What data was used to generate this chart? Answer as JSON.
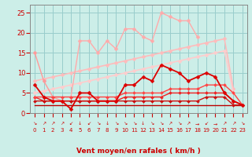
{
  "x": [
    0,
    1,
    2,
    3,
    4,
    5,
    6,
    7,
    8,
    9,
    10,
    11,
    12,
    13,
    14,
    15,
    16,
    17,
    18,
    19,
    20,
    21,
    22,
    23
  ],
  "series": [
    {
      "name": "rafales_high",
      "y": [
        null,
        null,
        null,
        null,
        4,
        18,
        18,
        15,
        18,
        16,
        21,
        21,
        19,
        18,
        25,
        24,
        23,
        23,
        19,
        null,
        null,
        null,
        null,
        null
      ],
      "color": "#ffaaaa",
      "lw": 1.0,
      "marker": "D",
      "ms": 2.5,
      "zorder": 3
    },
    {
      "name": "vent_spiky",
      "y": [
        15,
        8,
        4,
        3,
        null,
        null,
        null,
        null,
        null,
        null,
        null,
        null,
        null,
        null,
        null,
        null,
        null,
        null,
        null,
        null,
        null,
        null,
        null,
        null
      ],
      "color": "#ff9999",
      "lw": 1.0,
      "marker": "D",
      "ms": 2.5,
      "zorder": 3
    },
    {
      "name": "trend1",
      "y": [
        8,
        8.5,
        9,
        9.5,
        10,
        10.5,
        11,
        11.5,
        12,
        12.5,
        13,
        13.5,
        14,
        14.5,
        15,
        15.5,
        16,
        16.5,
        17,
        17.5,
        18,
        18.5,
        6,
        null
      ],
      "color": "#ffbbbb",
      "lw": 1.2,
      "marker": "D",
      "ms": 2.5,
      "zorder": 2
    },
    {
      "name": "trend2",
      "y": [
        5,
        5.5,
        6,
        6.5,
        7,
        7.5,
        8,
        8.5,
        9,
        9.5,
        10,
        10.5,
        11,
        11.5,
        12,
        12.5,
        13,
        13.5,
        14,
        14.5,
        15,
        15.5,
        5,
        null
      ],
      "color": "#ffcccc",
      "lw": 1.2,
      "marker": "D",
      "ms": 2.5,
      "zorder": 2
    },
    {
      "name": "main_dark",
      "y": [
        7,
        4,
        3,
        3,
        1,
        5,
        5,
        3,
        3,
        3,
        7,
        7,
        9,
        8,
        12,
        11,
        10,
        8,
        9,
        10,
        9,
        5,
        3,
        2
      ],
      "color": "#dd0000",
      "lw": 1.3,
      "marker": "D",
      "ms": 2.5,
      "zorder": 4
    },
    {
      "name": "flat_low",
      "y": [
        4,
        3,
        3,
        3,
        3,
        3,
        3,
        3,
        3,
        3,
        4,
        4,
        4,
        4,
        4,
        5,
        5,
        5,
        5,
        5,
        5,
        5,
        3,
        2
      ],
      "color": "#ee2222",
      "lw": 1.0,
      "marker": "D",
      "ms": 2.0,
      "zorder": 3
    },
    {
      "name": "flat2",
      "y": [
        4,
        4,
        4,
        4,
        4,
        4,
        4,
        4,
        4,
        4,
        5,
        5,
        5,
        5,
        5,
        6,
        6,
        6,
        6,
        7,
        7,
        7,
        5,
        2
      ],
      "color": "#ff4444",
      "lw": 1.0,
      "marker": "D",
      "ms": 2.0,
      "zorder": 3
    },
    {
      "name": "flat3",
      "y": [
        3,
        3,
        3,
        3,
        3,
        3,
        3,
        3,
        3,
        3,
        3,
        3,
        3,
        3,
        3,
        3,
        3,
        3,
        3,
        4,
        4,
        4,
        2,
        2
      ],
      "color": "#cc1111",
      "lw": 1.0,
      "marker": "D",
      "ms": 2.0,
      "zorder": 3
    },
    {
      "name": "flat_bottom",
      "y": [
        2,
        2,
        2,
        2,
        2,
        2,
        2,
        2,
        2,
        2,
        2,
        2,
        2,
        2,
        2,
        2,
        2,
        2,
        2,
        2,
        2,
        2,
        2,
        2
      ],
      "color": "#bb0000",
      "lw": 1.0,
      "marker": null,
      "ms": 0,
      "zorder": 2
    }
  ],
  "arrows": [
    "↘",
    "↗",
    "↗",
    "↗",
    "↙",
    "↓",
    "↙",
    "↘",
    "↓",
    "↘",
    "↘",
    "↘",
    "↓",
    "↘",
    "↘",
    "↗",
    "↘",
    "↗",
    "→",
    "↙",
    "→",
    "↗",
    "↗",
    "↘"
  ],
  "xlabel": "Vent moyen/en rafales ( km/h )",
  "ylim": [
    0,
    27
  ],
  "xlim": [
    -0.5,
    23.5
  ],
  "yticks": [
    0,
    5,
    10,
    15,
    20,
    25
  ],
  "xticks": [
    0,
    1,
    2,
    3,
    4,
    5,
    6,
    7,
    8,
    9,
    10,
    11,
    12,
    13,
    14,
    15,
    16,
    17,
    18,
    19,
    20,
    21,
    22,
    23
  ],
  "bg_color": "#cceee8",
  "grid_color": "#99cccc",
  "tick_color": "#cc0000",
  "label_color": "#cc0000",
  "axis_color": "#888888"
}
